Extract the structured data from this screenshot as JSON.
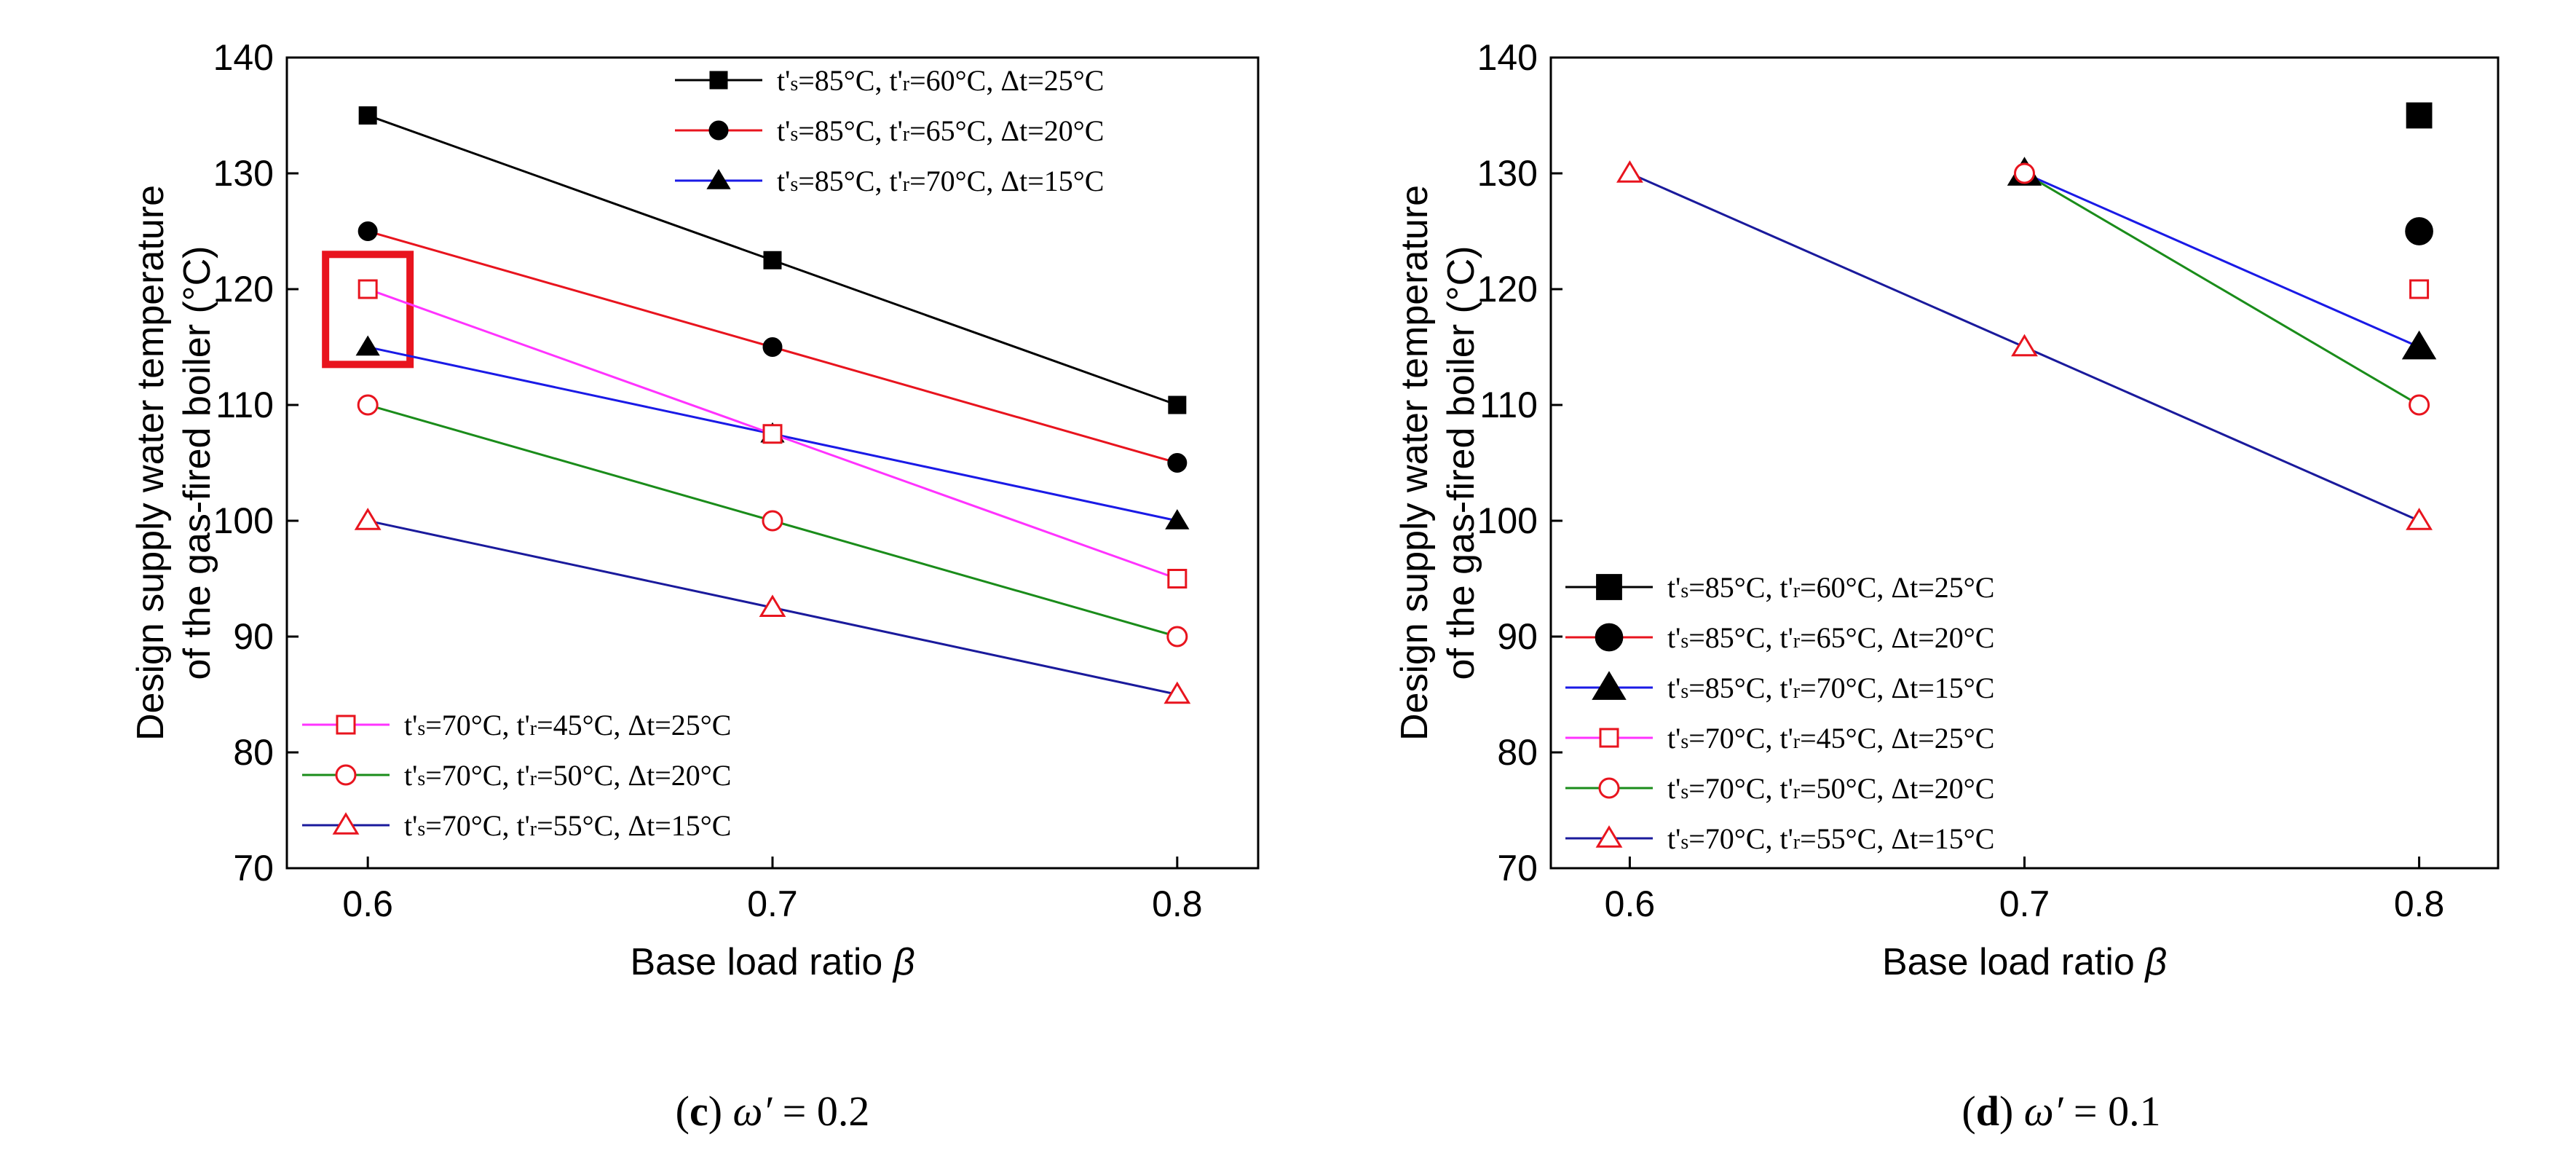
{
  "chart_data": [
    {
      "type": "line",
      "panel": "c",
      "caption": {
        "label": "(c)",
        "symbol": "ω′",
        "value": "= 0.2"
      },
      "xlabel": "Base load ratio",
      "xlabel_symbol": "β",
      "ylabel_line1": "Design supply water temperature",
      "ylabel_line2": "of the gas-fired boiler (°C)",
      "xlim": [
        0.58,
        0.82
      ],
      "ylim": [
        70,
        140
      ],
      "xticks": [
        0.6,
        0.7,
        0.8
      ],
      "yticks": [
        70,
        80,
        90,
        100,
        110,
        120,
        130,
        140
      ],
      "highlight": {
        "x": 0.6,
        "y_from": 113.5,
        "y_to": 123,
        "color": "#e8141e"
      },
      "legend_groups": [
        {
          "position": "top-right",
          "series_indices": [
            0,
            1,
            2
          ]
        },
        {
          "position": "bottom-left",
          "series_indices": [
            3,
            4,
            5
          ]
        }
      ],
      "series": [
        {
          "name": "t's=85°C, t'r=60°C, Δt=25°C",
          "ts": "85",
          "tr": "60",
          "dt": "25",
          "line_color": "#000000",
          "marker": "square-filled",
          "marker_color": "#000000",
          "x": [
            0.6,
            0.7,
            0.8
          ],
          "values": [
            135,
            122.5,
            110
          ]
        },
        {
          "name": "t's=85°C, t'r=65°C, Δt=20°C",
          "ts": "85",
          "tr": "65",
          "dt": "20",
          "line_color": "#e8141e",
          "marker": "circle-filled",
          "marker_color": "#000000",
          "x": [
            0.6,
            0.7,
            0.8
          ],
          "values": [
            125,
            115,
            105
          ]
        },
        {
          "name": "t's=85°C, t'r=70°C, Δt=15°C",
          "ts": "85",
          "tr": "70",
          "dt": "15",
          "line_color": "#1a1ae6",
          "marker": "triangle-filled",
          "marker_color": "#000000",
          "x": [
            0.6,
            0.7,
            0.8
          ],
          "values": [
            115,
            107.5,
            100
          ]
        },
        {
          "name": "t's=70°C, t'r=45°C, Δt=25°C",
          "ts": "70",
          "tr": "45",
          "dt": "25",
          "line_color": "#ff33ff",
          "marker": "square-open",
          "marker_color": "#e8141e",
          "x": [
            0.6,
            0.7,
            0.8
          ],
          "values": [
            120,
            107.5,
            95
          ]
        },
        {
          "name": "t's=70°C, t'r=50°C, Δt=20°C",
          "ts": "70",
          "tr": "50",
          "dt": "20",
          "line_color": "#1a8c1a",
          "marker": "circle-open",
          "marker_color": "#e8141e",
          "x": [
            0.6,
            0.7,
            0.8
          ],
          "values": [
            110,
            100,
            90
          ]
        },
        {
          "name": "t's=70°C, t'r=55°C, Δt=15°C",
          "ts": "70",
          "tr": "55",
          "dt": "15",
          "line_color": "#1a1a9c",
          "marker": "triangle-open",
          "marker_color": "#e8141e",
          "x": [
            0.6,
            0.7,
            0.8
          ],
          "values": [
            100,
            92.5,
            85
          ]
        }
      ]
    },
    {
      "type": "line",
      "panel": "d",
      "caption": {
        "label": "(d)",
        "symbol": "ω′",
        "value": "= 0.1"
      },
      "xlabel": "Base load ratio",
      "xlabel_symbol": "β",
      "ylabel_line1": "Design supply water temperature",
      "ylabel_line2": "of the gas-fired boiler (°C)",
      "xlim": [
        0.58,
        0.82
      ],
      "ylim": [
        70,
        140
      ],
      "xticks": [
        0.6,
        0.7,
        0.8
      ],
      "yticks": [
        70,
        80,
        90,
        100,
        110,
        120,
        130,
        140
      ],
      "legend_groups": [
        {
          "position": "bottom-left",
          "series_indices": [
            0,
            1,
            2,
            3,
            4,
            5
          ]
        }
      ],
      "series": [
        {
          "name": "t's=85°C, t'r=60°C, Δt=25°C",
          "ts": "85",
          "tr": "60",
          "dt": "25",
          "line_color": "#000000",
          "marker": "square-filled",
          "marker_color": "#000000",
          "marker_scale": 1.45,
          "x": [
            0.8
          ],
          "values": [
            135
          ]
        },
        {
          "name": "t's=85°C, t'r=65°C, Δt=20°C",
          "ts": "85",
          "tr": "65",
          "dt": "20",
          "line_color": "#e8141e",
          "marker": "circle-filled",
          "marker_color": "#000000",
          "marker_scale": 1.45,
          "x": [
            0.8
          ],
          "values": [
            125
          ]
        },
        {
          "name": "t's=85°C, t'r=70°C, Δt=15°C",
          "ts": "85",
          "tr": "70",
          "dt": "15",
          "line_color": "#1a1ae6",
          "marker": "triangle-filled",
          "marker_color": "#000000",
          "marker_scale": 1.45,
          "x": [
            0.7,
            0.8
          ],
          "values": [
            130,
            115
          ]
        },
        {
          "name": "t's=70°C, t'r=45°C, Δt=25°C",
          "ts": "70",
          "tr": "45",
          "dt": "25",
          "line_color": "#ff33ff",
          "marker": "square-open",
          "marker_color": "#e8141e",
          "x": [
            0.8
          ],
          "values": [
            120
          ]
        },
        {
          "name": "t's=70°C, t'r=50°C, Δt=20°C",
          "ts": "70",
          "tr": "50",
          "dt": "20",
          "line_color": "#1a8c1a",
          "marker": "circle-open",
          "marker_color": "#e8141e",
          "x": [
            0.7,
            0.8
          ],
          "values": [
            130,
            110
          ]
        },
        {
          "name": "t's=70°C, t'r=55°C, Δt=15°C",
          "ts": "70",
          "tr": "55",
          "dt": "15",
          "line_color": "#1a1a9c",
          "marker": "triangle-open",
          "marker_color": "#e8141e",
          "x": [
            0.6,
            0.7,
            0.8
          ],
          "values": [
            130,
            115,
            100
          ]
        }
      ]
    }
  ]
}
